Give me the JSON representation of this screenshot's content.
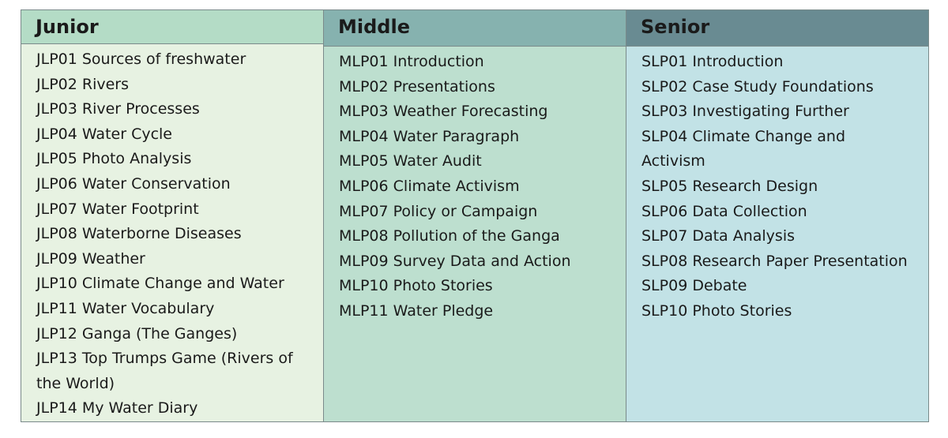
{
  "columns": [
    {
      "header": "Junior",
      "items": [
        "JLP01 Sources of freshwater",
        "JLP02 Rivers",
        "JLP03 River Processes",
        "JLP04 Water Cycle",
        "JLP05 Photo Analysis",
        "JLP06 Water Conservation",
        "JLP07 Water Footprint",
        "JLP08 Waterborne Diseases",
        "JLP09 Weather",
        "JLP10 Climate Change and Water",
        "JLP11 Water Vocabulary",
        "JLP12 Ganga (The Ganges)",
        "JLP13 Top Trumps Game (Rivers of the World)",
        "JLP14 My Water Diary"
      ]
    },
    {
      "header": "Middle",
      "items": [
        "MLP01 Introduction",
        "MLP02 Presentations",
        "MLP03 Weather Forecasting",
        "MLP04 Water Paragraph",
        "MLP05 Water Audit",
        "MLP06 Climate Activism",
        "MLP07 Policy or Campaign",
        "MLP08 Pollution of the Ganga",
        "MLP09 Survey Data and Action",
        "MLP10 Photo Stories",
        "MLP11 Water Pledge"
      ]
    },
    {
      "header": "Senior",
      "items": [
        "SLP01 Introduction",
        "SLP02 Case Study Foundations",
        "SLP03 Investigating Further",
        "SLP04 Climate Change and Activism",
        "SLP05 Research Design",
        "SLP06 Data Collection",
        "SLP07 Data Analysis",
        "SLP08 Research Paper Presentation",
        "SLP09 Debate",
        "SLP10 Photo Stories"
      ]
    }
  ]
}
